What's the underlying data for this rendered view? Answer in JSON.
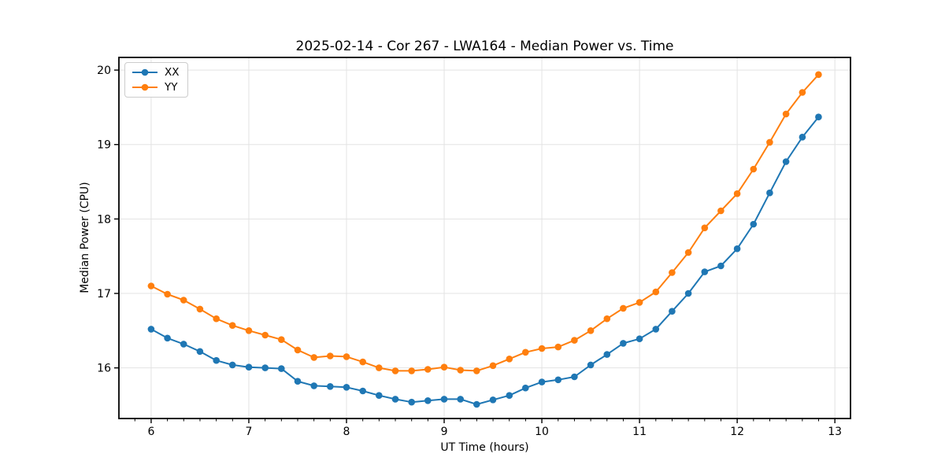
{
  "chart": {
    "title": "2025-02-14 - Cor 267 - LWA164 - Median Power vs. Time",
    "xlabel": "UT Time (hours)",
    "ylabel": "Median Power (CPU)"
  },
  "chart_data": {
    "type": "line",
    "title": "2025-02-14 - Cor 267 - LWA164 - Median Power vs. Time",
    "xlabel": "UT Time (hours)",
    "ylabel": "Median Power (CPU)",
    "grid": true,
    "legend_position": "upper left",
    "xlim": [
      5.67,
      13.16
    ],
    "ylim": [
      15.32,
      20.17
    ],
    "xticks": [
      6,
      7,
      8,
      9,
      10,
      11,
      12,
      13
    ],
    "yticks": [
      16,
      17,
      18,
      19,
      20
    ],
    "minor_xtick_step": 0.16667,
    "x": [
      6.0,
      6.167,
      6.333,
      6.5,
      6.667,
      6.833,
      7.0,
      7.167,
      7.333,
      7.5,
      7.667,
      7.833,
      8.0,
      8.167,
      8.333,
      8.5,
      8.667,
      8.833,
      9.0,
      9.167,
      9.333,
      9.5,
      9.667,
      9.833,
      10.0,
      10.167,
      10.333,
      10.5,
      10.667,
      10.833,
      11.0,
      11.167,
      11.333,
      11.5,
      11.667,
      11.833,
      12.0,
      12.167,
      12.333,
      12.5,
      12.667,
      12.833
    ],
    "series": [
      {
        "name": "XX",
        "color": "#1f77b4",
        "values": [
          16.52,
          16.4,
          16.32,
          16.22,
          16.1,
          16.04,
          16.01,
          16.0,
          15.99,
          15.82,
          15.76,
          15.75,
          15.74,
          15.69,
          15.63,
          15.58,
          15.54,
          15.56,
          15.58,
          15.58,
          15.51,
          15.57,
          15.63,
          15.73,
          15.81,
          15.84,
          15.88,
          16.04,
          16.18,
          16.33,
          16.39,
          16.52,
          16.76,
          17.0,
          17.29,
          17.37,
          17.6,
          17.93,
          18.35,
          18.77,
          19.1,
          19.37
        ]
      },
      {
        "name": "YY",
        "color": "#ff7f0e",
        "values": [
          17.1,
          16.99,
          16.91,
          16.79,
          16.66,
          16.57,
          16.5,
          16.44,
          16.38,
          16.24,
          16.14,
          16.16,
          16.15,
          16.08,
          16.0,
          15.96,
          15.96,
          15.98,
          16.01,
          15.97,
          15.96,
          16.03,
          16.12,
          16.21,
          16.26,
          16.28,
          16.37,
          16.5,
          16.66,
          16.8,
          16.88,
          17.02,
          17.28,
          17.55,
          17.88,
          18.11,
          18.34,
          18.67,
          19.03,
          19.41,
          19.7,
          19.94
        ]
      }
    ],
    "style": {
      "grid_color": "#e3e3e3",
      "spine_color": "#000000",
      "tick_color": "#000000",
      "background": "#ffffff",
      "marker_radius": 4.3,
      "line_width": 2
    }
  }
}
